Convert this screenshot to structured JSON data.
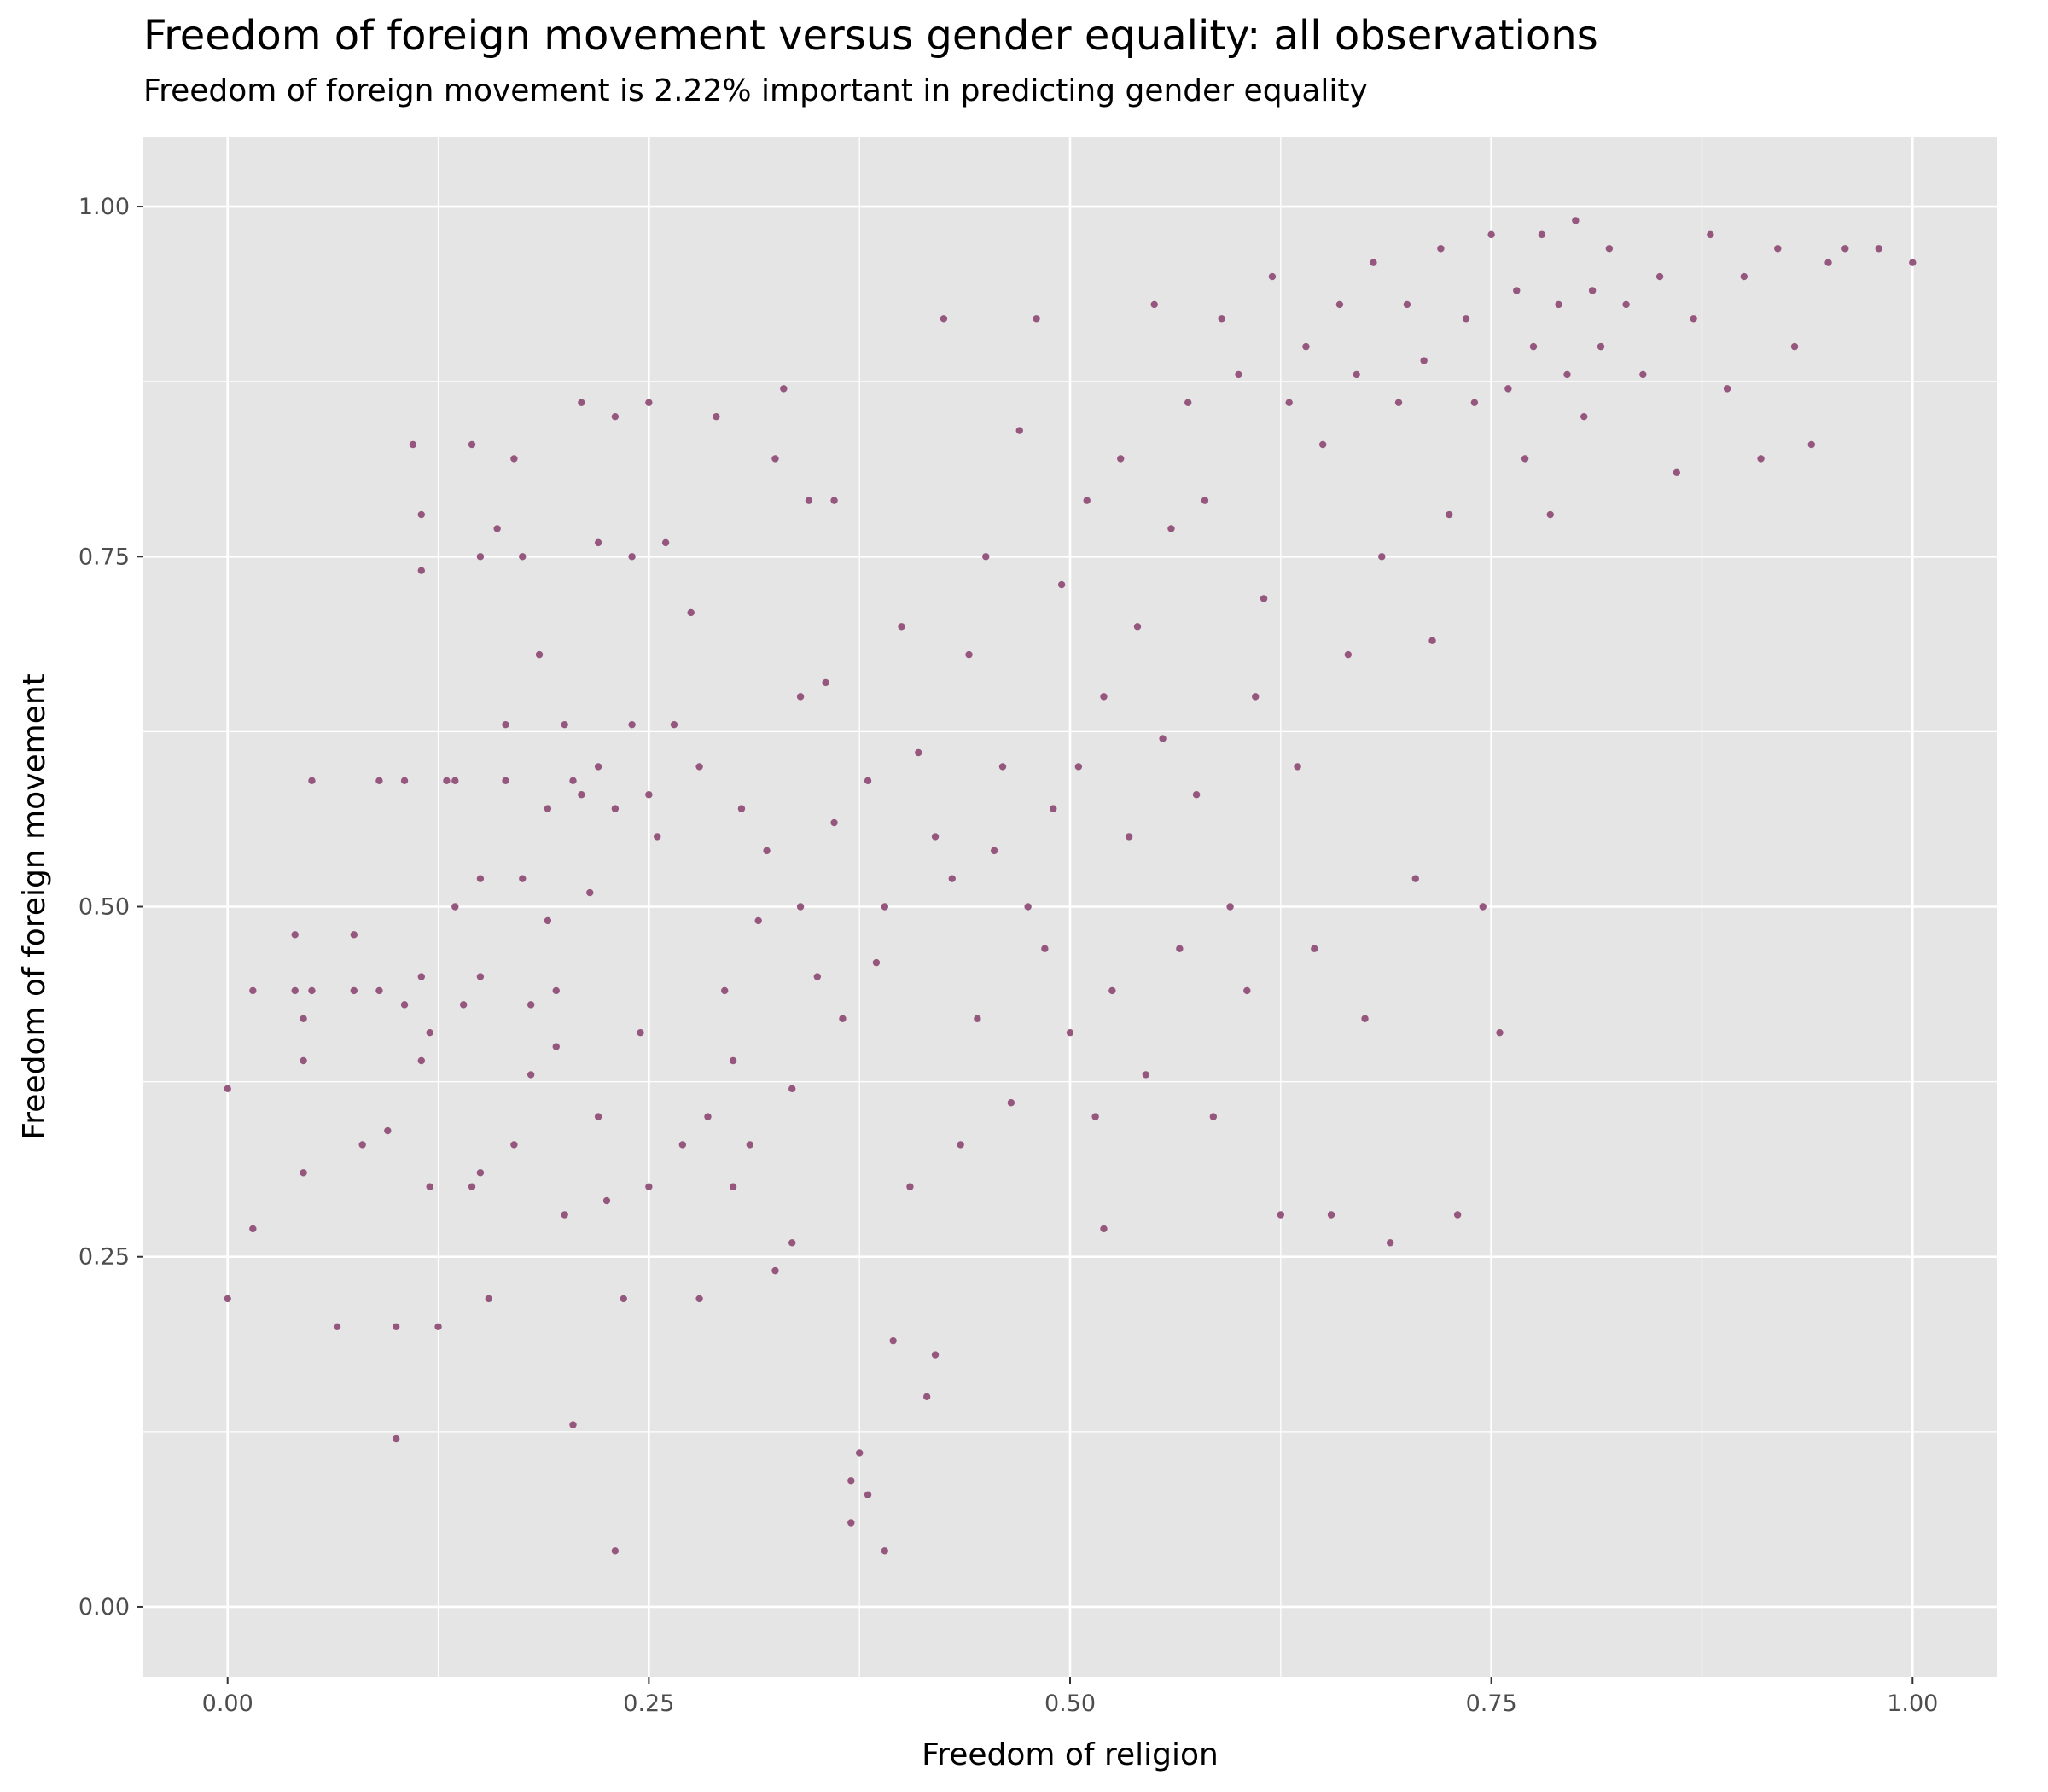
{
  "chart_data": {
    "type": "scatter",
    "title": "Freedom of foreign movement versus gender equality: all observations",
    "subtitle": "Freedom of foreign movement is 2.22% important in predicting gender equality",
    "xlabel": "Freedom of religion",
    "ylabel": "Freedom of foreign movement",
    "xlim": [
      -0.05,
      1.05
    ],
    "ylim": [
      -0.05,
      1.05
    ],
    "x_ticks": [
      "0.00",
      "0.25",
      "0.50",
      "0.75",
      "1.00"
    ],
    "y_ticks": [
      "0.00",
      "0.25",
      "0.50",
      "0.75",
      "1.00"
    ],
    "grid": true,
    "legend": "none",
    "point_color": "#96577E",
    "panel_color": "#E5E5E5",
    "series": [
      {
        "values_are": "[x, y] pairs",
        "points": [
          [
            0.0,
            0.37
          ],
          [
            0.0,
            0.22
          ],
          [
            0.015,
            0.27
          ],
          [
            0.015,
            0.44
          ],
          [
            0.04,
            0.48
          ],
          [
            0.04,
            0.44
          ],
          [
            0.045,
            0.42
          ],
          [
            0.045,
            0.39
          ],
          [
            0.045,
            0.31
          ],
          [
            0.05,
            0.59
          ],
          [
            0.05,
            0.44
          ],
          [
            0.065,
            0.2
          ],
          [
            0.075,
            0.48
          ],
          [
            0.075,
            0.44
          ],
          [
            0.08,
            0.33
          ],
          [
            0.09,
            0.59
          ],
          [
            0.09,
            0.44
          ],
          [
            0.095,
            0.34
          ],
          [
            0.1,
            0.2
          ],
          [
            0.1,
            0.12
          ],
          [
            0.105,
            0.59
          ],
          [
            0.105,
            0.43
          ],
          [
            0.11,
            0.83
          ],
          [
            0.115,
            0.78
          ],
          [
            0.115,
            0.74
          ],
          [
            0.115,
            0.45
          ],
          [
            0.115,
            0.39
          ],
          [
            0.12,
            0.41
          ],
          [
            0.12,
            0.3
          ],
          [
            0.125,
            0.2
          ],
          [
            0.13,
            0.59
          ],
          [
            0.135,
            0.59
          ],
          [
            0.135,
            0.5
          ],
          [
            0.14,
            0.43
          ],
          [
            0.145,
            0.83
          ],
          [
            0.145,
            0.3
          ],
          [
            0.15,
            0.75
          ],
          [
            0.15,
            0.52
          ],
          [
            0.15,
            0.45
          ],
          [
            0.15,
            0.31
          ],
          [
            0.155,
            0.22
          ],
          [
            0.16,
            0.77
          ],
          [
            0.165,
            0.63
          ],
          [
            0.165,
            0.59
          ],
          [
            0.17,
            0.82
          ],
          [
            0.17,
            0.33
          ],
          [
            0.175,
            0.75
          ],
          [
            0.175,
            0.52
          ],
          [
            0.18,
            0.43
          ],
          [
            0.18,
            0.38
          ],
          [
            0.185,
            0.68
          ],
          [
            0.19,
            0.57
          ],
          [
            0.19,
            0.49
          ],
          [
            0.195,
            0.4
          ],
          [
            0.195,
            0.44
          ],
          [
            0.2,
            0.63
          ],
          [
            0.2,
            0.28
          ],
          [
            0.205,
            0.59
          ],
          [
            0.205,
            0.13
          ],
          [
            0.21,
            0.86
          ],
          [
            0.21,
            0.58
          ],
          [
            0.215,
            0.51
          ],
          [
            0.22,
            0.76
          ],
          [
            0.22,
            0.6
          ],
          [
            0.22,
            0.35
          ],
          [
            0.225,
            0.29
          ],
          [
            0.23,
            0.85
          ],
          [
            0.23,
            0.57
          ],
          [
            0.23,
            0.04
          ],
          [
            0.235,
            0.22
          ],
          [
            0.24,
            0.75
          ],
          [
            0.24,
            0.63
          ],
          [
            0.245,
            0.41
          ],
          [
            0.25,
            0.86
          ],
          [
            0.25,
            0.58
          ],
          [
            0.25,
            0.3
          ],
          [
            0.255,
            0.55
          ],
          [
            0.26,
            0.76
          ],
          [
            0.265,
            0.63
          ],
          [
            0.27,
            0.33
          ],
          [
            0.275,
            0.71
          ],
          [
            0.28,
            0.22
          ],
          [
            0.28,
            0.6
          ],
          [
            0.285,
            0.35
          ],
          [
            0.29,
            0.85
          ],
          [
            0.295,
            0.44
          ],
          [
            0.3,
            0.39
          ],
          [
            0.3,
            0.3
          ],
          [
            0.305,
            0.57
          ],
          [
            0.31,
            0.33
          ],
          [
            0.315,
            0.49
          ],
          [
            0.32,
            0.54
          ],
          [
            0.325,
            0.82
          ],
          [
            0.325,
            0.24
          ],
          [
            0.33,
            0.87
          ],
          [
            0.335,
            0.37
          ],
          [
            0.335,
            0.26
          ],
          [
            0.34,
            0.65
          ],
          [
            0.34,
            0.5
          ],
          [
            0.345,
            0.79
          ],
          [
            0.35,
            0.45
          ],
          [
            0.355,
            0.66
          ],
          [
            0.36,
            0.56
          ],
          [
            0.36,
            0.79
          ],
          [
            0.365,
            0.42
          ],
          [
            0.37,
            0.09
          ],
          [
            0.37,
            0.06
          ],
          [
            0.375,
            0.11
          ],
          [
            0.38,
            0.59
          ],
          [
            0.38,
            0.08
          ],
          [
            0.385,
            0.46
          ],
          [
            0.39,
            0.04
          ],
          [
            0.39,
            0.5
          ],
          [
            0.395,
            0.19
          ],
          [
            0.4,
            0.7
          ],
          [
            0.405,
            0.3
          ],
          [
            0.41,
            0.61
          ],
          [
            0.415,
            0.15
          ],
          [
            0.42,
            0.18
          ],
          [
            0.42,
            0.55
          ],
          [
            0.425,
            0.92
          ],
          [
            0.43,
            0.52
          ],
          [
            0.435,
            0.33
          ],
          [
            0.44,
            0.68
          ],
          [
            0.445,
            0.42
          ],
          [
            0.45,
            0.75
          ],
          [
            0.455,
            0.54
          ],
          [
            0.46,
            0.6
          ],
          [
            0.465,
            0.36
          ],
          [
            0.47,
            0.84
          ],
          [
            0.475,
            0.5
          ],
          [
            0.48,
            0.92
          ],
          [
            0.485,
            0.47
          ],
          [
            0.49,
            0.57
          ],
          [
            0.495,
            0.73
          ],
          [
            0.5,
            0.41
          ],
          [
            0.505,
            0.6
          ],
          [
            0.51,
            0.79
          ],
          [
            0.515,
            0.35
          ],
          [
            0.52,
            0.27
          ],
          [
            0.52,
            0.65
          ],
          [
            0.525,
            0.44
          ],
          [
            0.53,
            0.82
          ],
          [
            0.535,
            0.55
          ],
          [
            0.54,
            0.7
          ],
          [
            0.545,
            0.38
          ],
          [
            0.55,
            0.93
          ],
          [
            0.555,
            0.62
          ],
          [
            0.56,
            0.77
          ],
          [
            0.565,
            0.47
          ],
          [
            0.57,
            0.86
          ],
          [
            0.575,
            0.58
          ],
          [
            0.58,
            0.79
          ],
          [
            0.585,
            0.35
          ],
          [
            0.59,
            0.92
          ],
          [
            0.595,
            0.5
          ],
          [
            0.6,
            0.88
          ],
          [
            0.605,
            0.44
          ],
          [
            0.61,
            0.65
          ],
          [
            0.615,
            0.72
          ],
          [
            0.62,
            0.95
          ],
          [
            0.625,
            0.28
          ],
          [
            0.63,
            0.86
          ],
          [
            0.635,
            0.6
          ],
          [
            0.64,
            0.9
          ],
          [
            0.645,
            0.47
          ],
          [
            0.65,
            0.83
          ],
          [
            0.655,
            0.28
          ],
          [
            0.66,
            0.93
          ],
          [
            0.665,
            0.68
          ],
          [
            0.67,
            0.88
          ],
          [
            0.675,
            0.42
          ],
          [
            0.68,
            0.96
          ],
          [
            0.685,
            0.75
          ],
          [
            0.69,
            0.26
          ],
          [
            0.695,
            0.86
          ],
          [
            0.7,
            0.93
          ],
          [
            0.705,
            0.52
          ],
          [
            0.71,
            0.89
          ],
          [
            0.715,
            0.69
          ],
          [
            0.72,
            0.97
          ],
          [
            0.725,
            0.78
          ],
          [
            0.73,
            0.28
          ],
          [
            0.735,
            0.92
          ],
          [
            0.74,
            0.86
          ],
          [
            0.745,
            0.5
          ],
          [
            0.75,
            0.98
          ],
          [
            0.755,
            0.41
          ],
          [
            0.76,
            0.87
          ],
          [
            0.765,
            0.94
          ],
          [
            0.77,
            0.82
          ],
          [
            0.775,
            0.9
          ],
          [
            0.78,
            0.98
          ],
          [
            0.785,
            0.78
          ],
          [
            0.79,
            0.93
          ],
          [
            0.795,
            0.88
          ],
          [
            0.8,
            0.99
          ],
          [
            0.805,
            0.85
          ],
          [
            0.81,
            0.94
          ],
          [
            0.815,
            0.9
          ],
          [
            0.82,
            0.97
          ],
          [
            0.83,
            0.93
          ],
          [
            0.84,
            0.88
          ],
          [
            0.85,
            0.95
          ],
          [
            0.86,
            0.81
          ],
          [
            0.87,
            0.92
          ],
          [
            0.88,
            0.98
          ],
          [
            0.89,
            0.87
          ],
          [
            0.9,
            0.95
          ],
          [
            0.91,
            0.82
          ],
          [
            0.92,
            0.97
          ],
          [
            0.93,
            0.9
          ],
          [
            0.94,
            0.83
          ],
          [
            0.95,
            0.96
          ],
          [
            0.96,
            0.97
          ],
          [
            0.98,
            0.97
          ],
          [
            1.0,
            0.96
          ]
        ]
      }
    ]
  }
}
